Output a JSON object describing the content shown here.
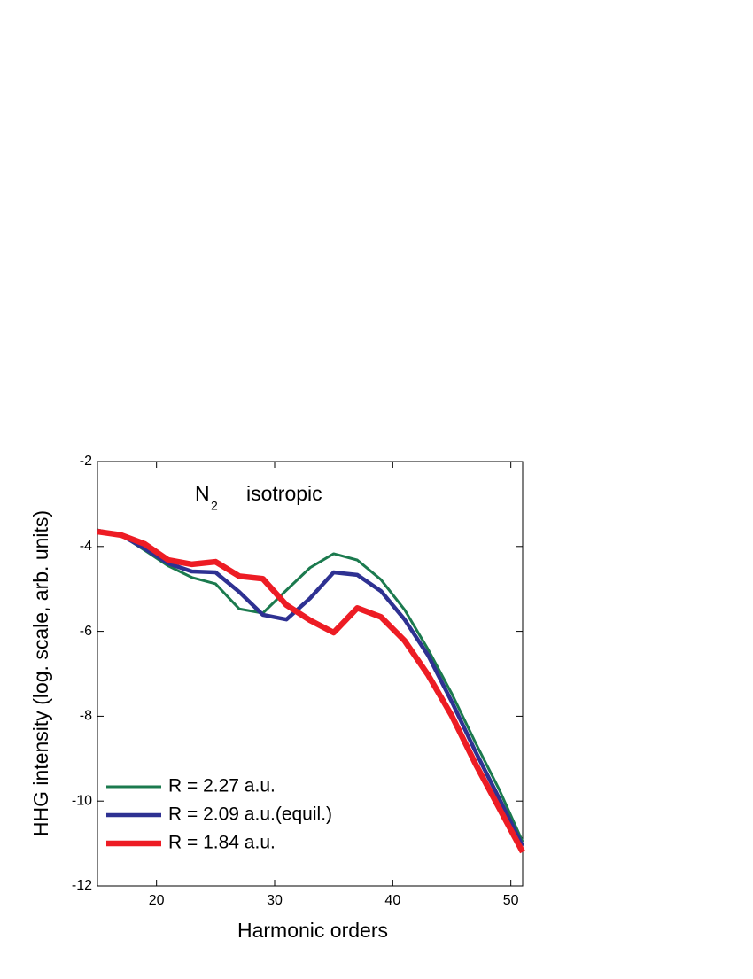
{
  "chart_data": {
    "type": "line",
    "xlabel": "Harmonic orders",
    "ylabel": "HHG intensity (log. scale, arb. units)",
    "annotation": {
      "text": "N",
      "subscript": "2",
      "note": "isotropic"
    },
    "x": [
      15,
      17,
      19,
      21,
      23,
      25,
      27,
      29,
      31,
      33,
      35,
      37,
      39,
      41,
      43,
      45,
      47,
      49,
      51
    ],
    "series": [
      {
        "name": "R = 2.27 a.u.",
        "color": "#1b7a4e",
        "values": [
          -3.61,
          -3.73,
          -4.09,
          -4.46,
          -4.73,
          -4.88,
          -5.47,
          -5.57,
          -5.03,
          -4.5,
          -4.17,
          -4.32,
          -4.78,
          -5.49,
          -6.43,
          -7.47,
          -8.62,
          -9.72,
          -10.96
        ]
      },
      {
        "name": "R = 2.09 a.u.(equil.)",
        "color": "#2e3192",
        "values": [
          -3.63,
          -3.73,
          -4.05,
          -4.4,
          -4.59,
          -4.61,
          -5.07,
          -5.61,
          -5.72,
          -5.22,
          -4.61,
          -4.67,
          -5.05,
          -5.72,
          -6.57,
          -7.66,
          -8.83,
          -9.93,
          -11.06
        ]
      },
      {
        "name": "R = 1.84 a.u.",
        "color": "#ed1c24",
        "values": [
          -3.65,
          -3.73,
          -3.94,
          -4.32,
          -4.42,
          -4.36,
          -4.7,
          -4.76,
          -5.38,
          -5.74,
          -6.03,
          -5.45,
          -5.66,
          -6.22,
          -7.03,
          -7.99,
          -9.12,
          -10.16,
          -11.2
        ]
      }
    ],
    "xlim": [
      15,
      51
    ],
    "xticks": [
      20,
      30,
      40,
      50
    ],
    "ylim": [
      -12,
      -2
    ],
    "yticks": [
      -12,
      -10,
      -8,
      -6,
      -4,
      -2
    ],
    "legend": "lower left"
  }
}
